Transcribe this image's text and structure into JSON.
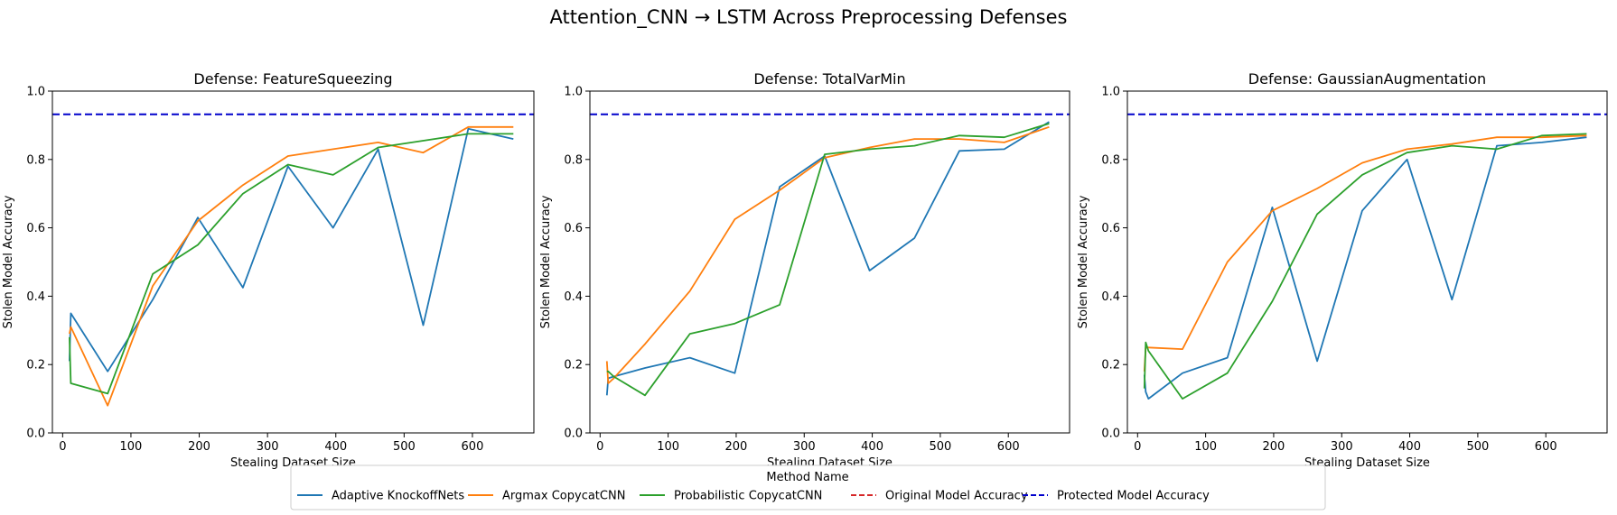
{
  "figure": {
    "suptitle": "Attention_CNN → LSTM Across Preprocessing Defenses"
  },
  "colors": {
    "adaptive": "#1f77b4",
    "argmax": "#ff7f0e",
    "probabilistic": "#2ca02c",
    "original": "#d62728",
    "protected": "#0000cc"
  },
  "legend": {
    "title": "Method Name",
    "entries": [
      {
        "label": "Adaptive KnockoffNets",
        "style": "solid",
        "color_key": "adaptive"
      },
      {
        "label": "Argmax CopycatCNN",
        "style": "solid",
        "color_key": "argmax"
      },
      {
        "label": "Probabilistic CopycatCNN",
        "style": "solid",
        "color_key": "probabilistic"
      },
      {
        "label": "Original Model Accuracy",
        "style": "dashed",
        "color_key": "original"
      },
      {
        "label": "Protected Model Accuracy",
        "style": "dashed",
        "color_key": "protected"
      }
    ]
  },
  "chart_data": [
    {
      "type": "line",
      "title": "Defense: FeatureSqueezing",
      "xlabel": "Stealing Dataset Size",
      "ylabel": "Stolen Model Accuracy",
      "xlim": [
        -15,
        690
      ],
      "ylim": [
        0,
        1.0
      ],
      "xticks": [
        0,
        100,
        200,
        300,
        400,
        500,
        600
      ],
      "yticks": [
        0.0,
        0.2,
        0.4,
        0.6,
        0.8,
        1.0
      ],
      "grid": false,
      "hlines": [
        {
          "name": "Protected Model Accuracy",
          "y": 0.932
        }
      ],
      "series": [
        {
          "name": "Adaptive KnockoffNets",
          "color_key": "adaptive",
          "x": [
            10,
            12,
            66,
            132,
            198,
            264,
            330,
            396,
            462,
            528,
            594,
            660
          ],
          "y": [
            0.21,
            0.35,
            0.18,
            0.39,
            0.63,
            0.425,
            0.78,
            0.6,
            0.83,
            0.315,
            0.89,
            0.86
          ]
        },
        {
          "name": "Argmax CopycatCNN",
          "color_key": "argmax",
          "x": [
            10,
            12,
            66,
            132,
            198,
            264,
            330,
            396,
            462,
            528,
            594,
            660
          ],
          "y": [
            0.29,
            0.31,
            0.08,
            0.43,
            0.62,
            0.725,
            0.81,
            0.83,
            0.85,
            0.82,
            0.895,
            0.895
          ]
        },
        {
          "name": "Probabilistic CopycatCNN",
          "color_key": "probabilistic",
          "x": [
            10,
            12,
            66,
            132,
            198,
            264,
            330,
            396,
            462,
            528,
            594,
            660
          ],
          "y": [
            0.28,
            0.145,
            0.115,
            0.465,
            0.55,
            0.7,
            0.785,
            0.755,
            0.835,
            0.855,
            0.875,
            0.875
          ]
        }
      ]
    },
    {
      "type": "line",
      "title": "Defense: TotalVarMin",
      "xlabel": "Stealing Dataset Size",
      "ylabel": "Stolen Model Accuracy",
      "xlim": [
        -15,
        690
      ],
      "ylim": [
        0,
        1.0
      ],
      "xticks": [
        0,
        100,
        200,
        300,
        400,
        500,
        600
      ],
      "yticks": [
        0.0,
        0.2,
        0.4,
        0.6,
        0.8,
        1.0
      ],
      "grid": false,
      "hlines": [
        {
          "name": "Protected Model Accuracy",
          "y": 0.932
        }
      ],
      "series": [
        {
          "name": "Adaptive KnockoffNets",
          "color_key": "adaptive",
          "x": [
            10,
            12,
            20,
            66,
            132,
            198,
            264,
            330,
            396,
            462,
            528,
            594,
            660
          ],
          "y": [
            0.11,
            0.16,
            0.165,
            0.19,
            0.22,
            0.175,
            0.72,
            0.81,
            0.475,
            0.57,
            0.825,
            0.83,
            0.91
          ]
        },
        {
          "name": "Argmax CopycatCNN",
          "color_key": "argmax",
          "x": [
            10,
            12,
            20,
            66,
            132,
            198,
            264,
            330,
            396,
            462,
            528,
            594,
            660
          ],
          "y": [
            0.21,
            0.145,
            0.16,
            0.26,
            0.415,
            0.625,
            0.71,
            0.805,
            0.835,
            0.86,
            0.86,
            0.85,
            0.895
          ]
        },
        {
          "name": "Probabilistic CopycatCNN",
          "color_key": "probabilistic",
          "x": [
            10,
            12,
            20,
            66,
            132,
            198,
            264,
            330,
            396,
            462,
            528,
            594,
            660
          ],
          "y": [
            0.18,
            0.18,
            0.165,
            0.11,
            0.29,
            0.32,
            0.375,
            0.815,
            0.83,
            0.84,
            0.87,
            0.865,
            0.905
          ]
        }
      ]
    },
    {
      "type": "line",
      "title": "Defense: GaussianAugmentation",
      "xlabel": "Stealing Dataset Size",
      "ylabel": "Stolen Model Accuracy",
      "xlim": [
        -15,
        690
      ],
      "ylim": [
        0,
        1.0
      ],
      "xticks": [
        0,
        100,
        200,
        300,
        400,
        500,
        600
      ],
      "yticks": [
        0.0,
        0.2,
        0.4,
        0.6,
        0.8,
        1.0
      ],
      "grid": false,
      "hlines": [
        {
          "name": "Protected Model Accuracy",
          "y": 0.932
        }
      ],
      "series": [
        {
          "name": "Adaptive KnockoffNets",
          "color_key": "adaptive",
          "x": [
            10,
            12,
            16,
            66,
            132,
            198,
            264,
            330,
            396,
            462,
            528,
            594,
            660
          ],
          "y": [
            0.17,
            0.12,
            0.1,
            0.175,
            0.22,
            0.66,
            0.21,
            0.65,
            0.8,
            0.39,
            0.84,
            0.85,
            0.865
          ]
        },
        {
          "name": "Argmax CopycatCNN",
          "color_key": "argmax",
          "x": [
            10,
            12,
            16,
            66,
            132,
            198,
            264,
            330,
            396,
            462,
            528,
            594,
            660
          ],
          "y": [
            0.18,
            0.25,
            0.25,
            0.245,
            0.5,
            0.65,
            0.715,
            0.79,
            0.83,
            0.845,
            0.865,
            0.865,
            0.87
          ]
        },
        {
          "name": "Probabilistic CopycatCNN",
          "color_key": "probabilistic",
          "x": [
            10,
            12,
            16,
            66,
            132,
            198,
            264,
            330,
            396,
            462,
            528,
            594,
            660
          ],
          "y": [
            0.13,
            0.265,
            0.24,
            0.1,
            0.175,
            0.385,
            0.64,
            0.755,
            0.82,
            0.84,
            0.83,
            0.87,
            0.875
          ]
        }
      ]
    }
  ]
}
